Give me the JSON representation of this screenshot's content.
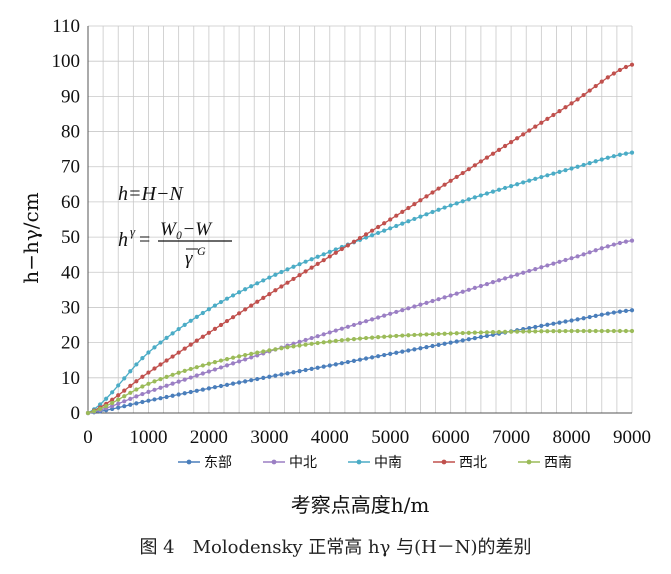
{
  "caption": "图 4　Molodensky 正常高 hγ 与(H－N)的差别",
  "formula": {
    "line1": "h=H−N",
    "lhs": "h",
    "lhs_sup": "γ",
    "equals": "=",
    "numerator": "W₀−W",
    "denominator": "γ",
    "denominator_sup": "G"
  },
  "chart_data": {
    "type": "line",
    "xlabel": "考察点高度h/m",
    "ylabel": "h−hγ/cm",
    "xlim": [
      0,
      9000
    ],
    "ylim": [
      0,
      110
    ],
    "x_ticks": [
      0,
      1000,
      2000,
      3000,
      4000,
      5000,
      6000,
      7000,
      8000,
      9000
    ],
    "y_ticks": [
      0,
      10,
      20,
      30,
      40,
      50,
      60,
      70,
      80,
      90,
      100,
      110
    ],
    "grid": true,
    "legend_position": "bottom",
    "x": [
      0,
      1000,
      2000,
      3000,
      4000,
      5000,
      6000,
      7000,
      8000,
      9000
    ],
    "series": [
      {
        "name": "东部",
        "color": "#4a7ebb",
        "values": [
          0,
          3.5,
          7.0,
          10.3,
          13.5,
          16.8,
          20.0,
          23.2,
          26.3,
          29.2
        ]
      },
      {
        "name": "中北",
        "color": "#9b7fc4",
        "values": [
          0,
          6.0,
          11.8,
          17.5,
          22.9,
          28.2,
          33.4,
          38.8,
          44.0,
          49.0
        ]
      },
      {
        "name": "中南",
        "color": "#4bacc6",
        "values": [
          0,
          17.2,
          29.5,
          38.5,
          45.8,
          52.5,
          59.0,
          64.5,
          69.5,
          74.0
        ]
      },
      {
        "name": "西北",
        "color": "#c0504d",
        "values": [
          0,
          11.5,
          22.8,
          33.8,
          44.5,
          55.0,
          66.0,
          77.0,
          88.0,
          99.0
        ]
      },
      {
        "name": "西南",
        "color": "#9bbb59",
        "values": [
          0,
          8.3,
          14.0,
          17.8,
          20.3,
          21.8,
          22.6,
          23.1,
          23.3,
          23.3
        ]
      }
    ]
  }
}
